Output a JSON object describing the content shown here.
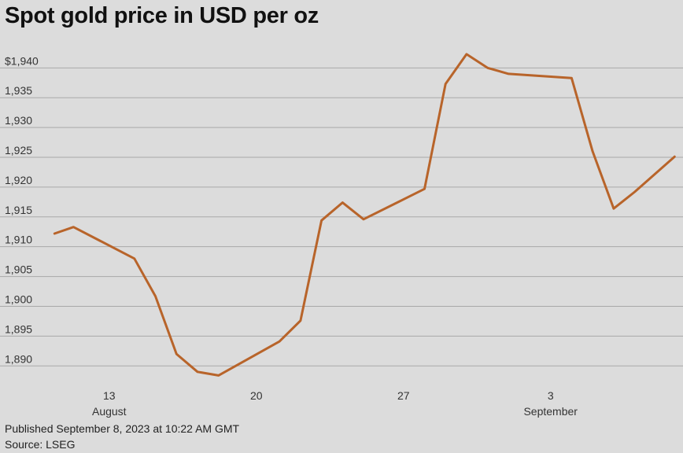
{
  "chart_data": {
    "type": "line",
    "title": "Spot gold price in USD per oz",
    "xlabel": "",
    "ylabel": "",
    "ylim": [
      1887,
      1944
    ],
    "yticks": [
      1890,
      1895,
      1900,
      1905,
      1910,
      1915,
      1920,
      1925,
      1930,
      1935,
      1940
    ],
    "ytick_labels": [
      "1,890",
      "1,895",
      "1,900",
      "1,905",
      "1,910",
      "1,915",
      "1,920",
      "1,925",
      "1,930",
      "1,935",
      "$1,940"
    ],
    "xlim": [
      10.35,
      40.3
    ],
    "xticks": [
      {
        "pos": 13,
        "day": "13",
        "month": "August"
      },
      {
        "pos": 20,
        "day": "20",
        "month": ""
      },
      {
        "pos": 27,
        "day": "27",
        "month": ""
      },
      {
        "pos": 34,
        "day": "3",
        "month": "September"
      }
    ],
    "grid": true,
    "color": "#b8642a",
    "series": [
      {
        "name": "Spot gold",
        "points": [
          {
            "x": 10.4,
            "y": 1912.2
          },
          {
            "x": 11.3,
            "y": 1913.3
          },
          {
            "x": 14.2,
            "y": 1908.0
          },
          {
            "x": 15.2,
            "y": 1901.7
          },
          {
            "x": 16.2,
            "y": 1892.0
          },
          {
            "x": 17.2,
            "y": 1889.0
          },
          {
            "x": 18.2,
            "y": 1888.4
          },
          {
            "x": 21.1,
            "y": 1894.1
          },
          {
            "x": 22.1,
            "y": 1897.6
          },
          {
            "x": 23.1,
            "y": 1914.4
          },
          {
            "x": 24.1,
            "y": 1917.4
          },
          {
            "x": 25.1,
            "y": 1914.6
          },
          {
            "x": 28.0,
            "y": 1919.7
          },
          {
            "x": 29.0,
            "y": 1937.3
          },
          {
            "x": 30.0,
            "y": 1942.3
          },
          {
            "x": 31.0,
            "y": 1940.0
          },
          {
            "x": 32.0,
            "y": 1939.0
          },
          {
            "x": 35.0,
            "y": 1938.3
          },
          {
            "x": 36.0,
            "y": 1926.0
          },
          {
            "x": 37.0,
            "y": 1916.4
          },
          {
            "x": 38.0,
            "y": 1919.2
          },
          {
            "x": 39.9,
            "y": 1925.1
          }
        ]
      }
    ]
  },
  "footer": {
    "published": "Published September 8, 2023 at 10:22 AM GMT",
    "source": "Source: LSEG"
  }
}
